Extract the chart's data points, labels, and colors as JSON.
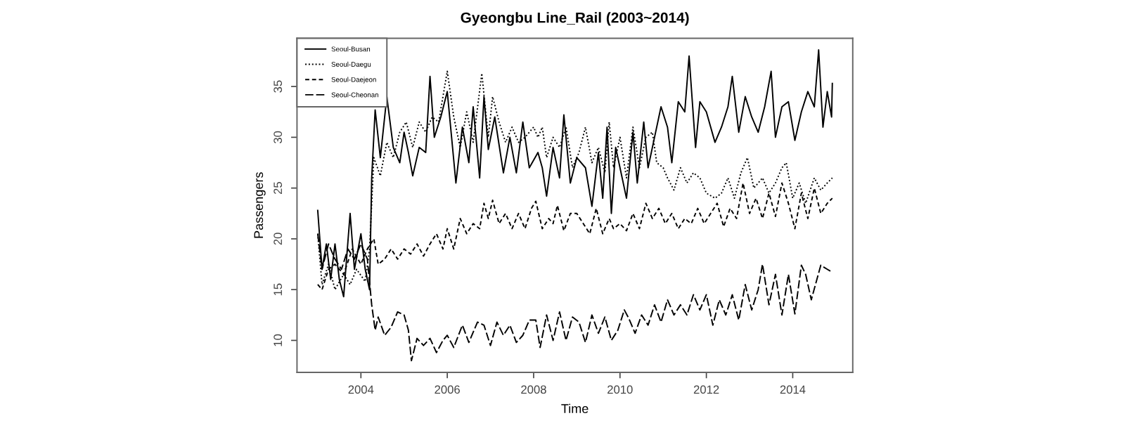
{
  "chart_data": {
    "type": "line",
    "title": "Gyeongbu Line_Rail (2003~2014)",
    "xlabel": "Time",
    "ylabel": "Passengers",
    "xlim": [
      2002.52,
      2015.39
    ],
    "ylim": [
      6.85,
      39.75
    ],
    "xticks": [
      2004,
      2006,
      2008,
      2010,
      2012,
      2014
    ],
    "yticks": [
      10,
      15,
      20,
      25,
      30,
      35
    ],
    "grid": false,
    "legend": "top left",
    "series": [
      {
        "name": "Seoul-Busan",
        "color": "#000000",
        "line_style": "solid",
        "x": [
          2003.0,
          2003.1,
          2003.2,
          2003.3,
          2003.4,
          2003.5,
          2003.6,
          2003.75,
          2003.85,
          2004.0,
          2004.1,
          2004.2,
          2004.25,
          2004.33,
          2004.45,
          2004.6,
          2004.75,
          2004.9,
          2005.0,
          2005.1,
          2005.2,
          2005.35,
          2005.5,
          2005.6,
          2005.7,
          2005.85,
          2006.0,
          2006.1,
          2006.2,
          2006.35,
          2006.5,
          2006.6,
          2006.75,
          2006.85,
          2006.95,
          2007.1,
          2007.3,
          2007.45,
          2007.6,
          2007.75,
          2007.9,
          2008.1,
          2008.2,
          2008.3,
          2008.45,
          2008.6,
          2008.7,
          2008.85,
          2009.0,
          2009.2,
          2009.35,
          2009.5,
          2009.6,
          2009.7,
          2009.8,
          2009.9,
          2010.0,
          2010.15,
          2010.3,
          2010.4,
          2010.55,
          2010.65,
          2010.8,
          2010.95,
          2011.1,
          2011.2,
          2011.35,
          2011.5,
          2011.6,
          2011.75,
          2011.85,
          2012.0,
          2012.2,
          2012.35,
          2012.5,
          2012.6,
          2012.75,
          2012.9,
          2013.05,
          2013.2,
          2013.35,
          2013.5,
          2013.6,
          2013.75,
          2013.9,
          2014.05,
          2014.2,
          2014.35,
          2014.5,
          2014.6,
          2014.7,
          2014.8,
          2014.9,
          2014.917
        ],
        "values": [
          22.8,
          17,
          19.5,
          16,
          19.5,
          16,
          14.3,
          22.5,
          17,
          20.5,
          17,
          15,
          26,
          32.7,
          28,
          34,
          29,
          27.5,
          30.5,
          28.5,
          26.2,
          29,
          28.5,
          36,
          30,
          32,
          34.5,
          30,
          25.5,
          31,
          27.5,
          33,
          26,
          34,
          28.8,
          32,
          26.5,
          30,
          26.5,
          31.5,
          27,
          28.5,
          27,
          24.2,
          29,
          26,
          32.2,
          25.5,
          28,
          27,
          23.2,
          28.5,
          24,
          31,
          22.5,
          29,
          27,
          24,
          30.5,
          25.5,
          31.5,
          27,
          30,
          33,
          31,
          27.5,
          33.5,
          32.5,
          38,
          29,
          33.5,
          32.5,
          29.5,
          31,
          33,
          36,
          30.5,
          34,
          32,
          30.5,
          33,
          36.5,
          30,
          33,
          33.5,
          29.7,
          32.5,
          34.5,
          33,
          38.6,
          31,
          34.5,
          32,
          35.3
        ]
      },
      {
        "name": "Seoul-Daegu",
        "color": "#000000",
        "line_style": "dotted",
        "x": [
          2003.0,
          2003.1,
          2003.25,
          2003.4,
          2003.6,
          2003.75,
          2003.9,
          2004.1,
          2004.2,
          2004.3,
          2004.45,
          2004.6,
          2004.75,
          2004.9,
          2005.05,
          2005.2,
          2005.35,
          2005.5,
          2005.65,
          2005.8,
          2006.0,
          2006.15,
          2006.3,
          2006.45,
          2006.6,
          2006.8,
          2006.95,
          2007.05,
          2007.2,
          2007.35,
          2007.5,
          2007.65,
          2007.8,
          2008.0,
          2008.1,
          2008.2,
          2008.3,
          2008.45,
          2008.6,
          2008.75,
          2008.9,
          2009.05,
          2009.2,
          2009.35,
          2009.5,
          2009.65,
          2009.75,
          2009.85,
          2010.0,
          2010.15,
          2010.3,
          2010.45,
          2010.6,
          2010.75,
          2010.85,
          2011.0,
          2011.1,
          2011.25,
          2011.4,
          2011.55,
          2011.7,
          2011.85,
          2012.0,
          2012.2,
          2012.35,
          2012.5,
          2012.65,
          2012.8,
          2012.95,
          2013.1,
          2013.3,
          2013.45,
          2013.6,
          2013.75,
          2013.85,
          2014.0,
          2014.15,
          2014.3,
          2014.5,
          2014.65,
          2014.8,
          2014.917
        ],
        "values": [
          20.5,
          15.5,
          17.5,
          15,
          16.5,
          15.5,
          17,
          15.8,
          19,
          28,
          26.2,
          29.5,
          28,
          30.5,
          31.5,
          29,
          31.5,
          30.5,
          32,
          31.5,
          36.5,
          32,
          29,
          32.5,
          29.5,
          36.3,
          30,
          34,
          31.5,
          29.5,
          31,
          29.5,
          30,
          31,
          30,
          31,
          28,
          30,
          29,
          31,
          27,
          28.5,
          31,
          27.5,
          29,
          26.5,
          31.5,
          27,
          30,
          26,
          31,
          27,
          30,
          30.5,
          27.5,
          27,
          26,
          24.8,
          27,
          25.5,
          26.5,
          26,
          24.5,
          24,
          24.5,
          26,
          24,
          26.5,
          28,
          25,
          26,
          24.5,
          25.5,
          27,
          27.5,
          24,
          25.5,
          23.5,
          26,
          24.8,
          25.5,
          26
        ]
      },
      {
        "name": "Seoul-Daejeon",
        "color": "#000000",
        "line_style": "dashed",
        "x": [
          2003.0,
          2003.1,
          2003.25,
          2003.4,
          2003.6,
          2003.8,
          2004.0,
          2004.15,
          2004.3,
          2004.4,
          2004.55,
          2004.7,
          2004.85,
          2005.0,
          2005.15,
          2005.3,
          2005.45,
          2005.6,
          2005.75,
          2005.9,
          2006.0,
          2006.15,
          2006.3,
          2006.45,
          2006.6,
          2006.75,
          2006.85,
          2006.95,
          2007.05,
          2007.2,
          2007.35,
          2007.5,
          2007.65,
          2007.8,
          2007.95,
          2008.05,
          2008.2,
          2008.35,
          2008.45,
          2008.55,
          2008.7,
          2008.85,
          2009.0,
          2009.15,
          2009.3,
          2009.45,
          2009.6,
          2009.75,
          2009.85,
          2010.0,
          2010.15,
          2010.3,
          2010.45,
          2010.6,
          2010.75,
          2010.9,
          2011.05,
          2011.2,
          2011.35,
          2011.5,
          2011.65,
          2011.8,
          2011.95,
          2012.1,
          2012.25,
          2012.4,
          2012.55,
          2012.7,
          2012.85,
          2013.0,
          2013.15,
          2013.3,
          2013.45,
          2013.6,
          2013.75,
          2013.9,
          2014.05,
          2014.2,
          2014.35,
          2014.5,
          2014.65,
          2014.8,
          2014.917
        ],
        "values": [
          15.5,
          15,
          17,
          17.5,
          16.5,
          19,
          17.5,
          19,
          20,
          17.5,
          18,
          19,
          18,
          19,
          18.5,
          19.5,
          18.3,
          19.5,
          20.5,
          19,
          21,
          19,
          22,
          20.5,
          21.5,
          21,
          23.5,
          22,
          23.8,
          21.5,
          22.5,
          21,
          22.5,
          21,
          23,
          23.7,
          21,
          22,
          21.5,
          23.3,
          20.8,
          22.5,
          22.5,
          21.5,
          20.5,
          23,
          20.5,
          22,
          21,
          21.5,
          20.8,
          22.5,
          21,
          23.5,
          22,
          23,
          21.5,
          22.5,
          21,
          22,
          21.5,
          23,
          21.5,
          22.5,
          23.5,
          21.2,
          23,
          22,
          25.5,
          22.5,
          24,
          22,
          24.5,
          22.2,
          25.5,
          23.5,
          21,
          24.5,
          22,
          25,
          22.5,
          23.5,
          24
        ]
      },
      {
        "name": "Seoul-Cheonan",
        "color": "#000000",
        "line_style": "longdash",
        "x": [
          2003.0,
          2003.1,
          2003.25,
          2003.4,
          2003.55,
          2003.7,
          2003.85,
          2004.0,
          2004.15,
          2004.25,
          2004.33,
          2004.4,
          2004.55,
          2004.7,
          2004.85,
          2005.0,
          2005.1,
          2005.17,
          2005.3,
          2005.45,
          2005.6,
          2005.75,
          2005.9,
          2006.0,
          2006.15,
          2006.35,
          2006.5,
          2006.7,
          2006.85,
          2007.0,
          2007.15,
          2007.3,
          2007.45,
          2007.6,
          2007.75,
          2007.9,
          2008.05,
          2008.15,
          2008.3,
          2008.45,
          2008.6,
          2008.75,
          2008.9,
          2009.05,
          2009.2,
          2009.35,
          2009.5,
          2009.65,
          2009.8,
          2009.95,
          2010.1,
          2010.2,
          2010.35,
          2010.5,
          2010.65,
          2010.8,
          2010.95,
          2011.1,
          2011.25,
          2011.4,
          2011.55,
          2011.7,
          2011.85,
          2012.0,
          2012.15,
          2012.3,
          2012.45,
          2012.6,
          2012.75,
          2012.9,
          2013.05,
          2013.2,
          2013.3,
          2013.45,
          2013.6,
          2013.75,
          2013.9,
          2014.05,
          2014.2,
          2014.3,
          2014.43,
          2014.65,
          2014.8,
          2014.917
        ],
        "values": [
          20.5,
          17,
          19.5,
          18,
          17,
          19,
          18,
          19.5,
          18,
          13.5,
          11,
          12.3,
          10.5,
          11.3,
          12.8,
          12.5,
          11,
          8,
          10.2,
          9.5,
          10.2,
          8.8,
          10,
          10.5,
          9.3,
          11.5,
          9.8,
          11.8,
          11.5,
          9.5,
          11.8,
          10.5,
          11.5,
          9.8,
          10.5,
          12,
          12,
          9.3,
          12.5,
          10,
          12.8,
          10,
          12.3,
          11.8,
          9.8,
          12.5,
          10.7,
          12.3,
          10,
          11,
          13,
          12.2,
          10.7,
          12.5,
          11.5,
          13.5,
          11.8,
          14,
          12.5,
          13.5,
          12.5,
          14.5,
          13,
          14.5,
          11.5,
          14,
          12.5,
          14.5,
          12,
          15.5,
          13,
          15,
          17.5,
          13.5,
          16.5,
          12.5,
          16.5,
          12.6,
          17.4,
          16.5,
          14,
          17.4,
          17,
          16.7
        ]
      }
    ]
  }
}
